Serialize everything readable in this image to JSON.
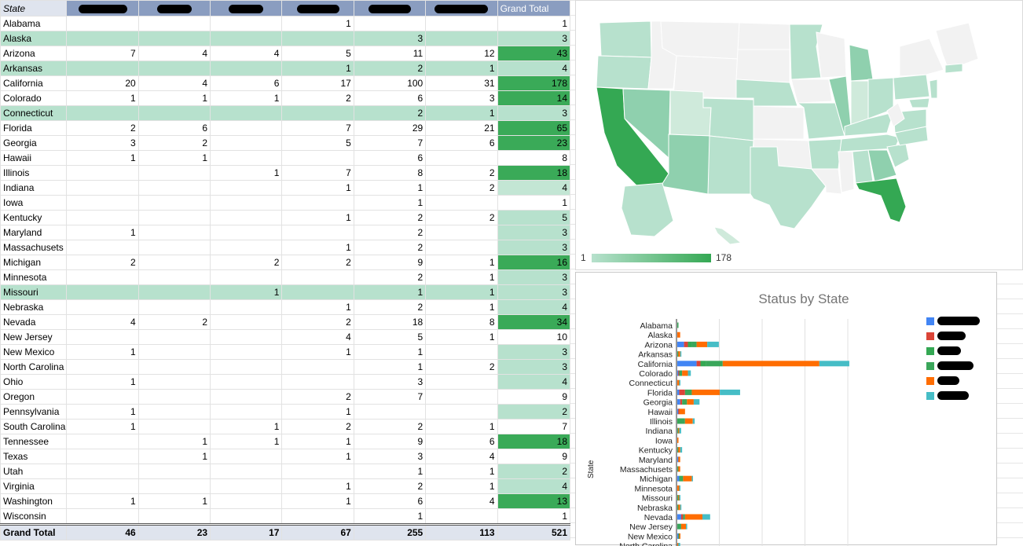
{
  "sheet": {
    "header_state": "State",
    "header_grand_total": "Grand Total",
    "redacted_header_widths": [
      62,
      44,
      44,
      54,
      54,
      68
    ],
    "rows": [
      {
        "state": "Alabama",
        "v": [
          "",
          "",
          "",
          "1",
          "",
          ""
        ],
        "total": "1",
        "band": false,
        "shade": 0
      },
      {
        "state": "Alaska",
        "v": [
          "",
          "",
          "",
          "",
          "3",
          ""
        ],
        "total": "3",
        "band": true,
        "shade": 1
      },
      {
        "state": "Arizona",
        "v": [
          "7",
          "4",
          "4",
          "5",
          "11",
          "12"
        ],
        "total": "43",
        "band": false,
        "shade": 3
      },
      {
        "state": "Arkansas",
        "v": [
          "",
          "",
          "",
          "1",
          "2",
          "1"
        ],
        "total": "4",
        "band": true,
        "shade": 1
      },
      {
        "state": "California",
        "v": [
          "20",
          "4",
          "6",
          "17",
          "100",
          "31"
        ],
        "total": "178",
        "band": false,
        "shade": 3
      },
      {
        "state": "Colorado",
        "v": [
          "1",
          "1",
          "1",
          "2",
          "6",
          "3"
        ],
        "total": "14",
        "band": false,
        "shade": 3
      },
      {
        "state": "Connecticut",
        "v": [
          "",
          "",
          "",
          "",
          "2",
          "1"
        ],
        "total": "3",
        "band": true,
        "shade": 1
      },
      {
        "state": "Florida",
        "v": [
          "2",
          "6",
          "",
          "7",
          "29",
          "21"
        ],
        "total": "65",
        "band": false,
        "shade": 3
      },
      {
        "state": "Georgia",
        "v": [
          "3",
          "2",
          "",
          "5",
          "7",
          "6"
        ],
        "total": "23",
        "band": false,
        "shade": 3
      },
      {
        "state": "Hawaii",
        "v": [
          "1",
          "1",
          "",
          "",
          "6",
          ""
        ],
        "total": "8",
        "band": false,
        "shade": 0
      },
      {
        "state": "Illinois",
        "v": [
          "",
          "",
          "1",
          "7",
          "8",
          "2"
        ],
        "total": "18",
        "band": false,
        "shade": 3
      },
      {
        "state": "Indiana",
        "v": [
          "",
          "",
          "",
          "1",
          "1",
          "2"
        ],
        "total": "4",
        "band": false,
        "shade": 2
      },
      {
        "state": "Iowa",
        "v": [
          "",
          "",
          "",
          "",
          "1",
          ""
        ],
        "total": "1",
        "band": false,
        "shade": 0
      },
      {
        "state": "Kentucky",
        "v": [
          "",
          "",
          "",
          "1",
          "2",
          "2"
        ],
        "total": "5",
        "band": false,
        "shade": 1
      },
      {
        "state": "Maryland",
        "v": [
          "1",
          "",
          "",
          "",
          "2",
          ""
        ],
        "total": "3",
        "band": false,
        "shade": 1
      },
      {
        "state": "Massachusets",
        "v": [
          "",
          "",
          "",
          "1",
          "2",
          ""
        ],
        "total": "3",
        "band": false,
        "shade": 1
      },
      {
        "state": "Michigan",
        "v": [
          "2",
          "",
          "2",
          "2",
          "9",
          "1"
        ],
        "total": "16",
        "band": false,
        "shade": 3
      },
      {
        "state": "Minnesota",
        "v": [
          "",
          "",
          "",
          "",
          "2",
          "1"
        ],
        "total": "3",
        "band": false,
        "shade": 1
      },
      {
        "state": "Missouri",
        "v": [
          "",
          "",
          "1",
          "",
          "1",
          "1"
        ],
        "total": "3",
        "band": true,
        "shade": 1
      },
      {
        "state": "Nebraska",
        "v": [
          "",
          "",
          "",
          "1",
          "2",
          "1"
        ],
        "total": "4",
        "band": false,
        "shade": 1
      },
      {
        "state": "Nevada",
        "v": [
          "4",
          "2",
          "",
          "2",
          "18",
          "8"
        ],
        "total": "34",
        "band": false,
        "shade": 3
      },
      {
        "state": "New Jersey",
        "v": [
          "",
          "",
          "",
          "4",
          "5",
          "1"
        ],
        "total": "10",
        "band": false,
        "shade": 0
      },
      {
        "state": "New Mexico",
        "v": [
          "1",
          "",
          "",
          "1",
          "1",
          ""
        ],
        "total": "3",
        "band": false,
        "shade": 1
      },
      {
        "state": "North Carolina",
        "v": [
          "",
          "",
          "",
          "",
          "1",
          "2"
        ],
        "total": "3",
        "band": false,
        "shade": 1
      },
      {
        "state": "Ohio",
        "v": [
          "1",
          "",
          "",
          "",
          "3",
          ""
        ],
        "total": "4",
        "band": false,
        "shade": 1
      },
      {
        "state": "Oregon",
        "v": [
          "",
          "",
          "",
          "2",
          "7",
          ""
        ],
        "total": "9",
        "band": false,
        "shade": 0
      },
      {
        "state": "Pennsylvania",
        "v": [
          "1",
          "",
          "",
          "1",
          "",
          ""
        ],
        "total": "2",
        "band": false,
        "shade": 1
      },
      {
        "state": "South Carolina",
        "v": [
          "1",
          "",
          "1",
          "2",
          "2",
          "1"
        ],
        "total": "7",
        "band": false,
        "shade": 0
      },
      {
        "state": "Tennessee",
        "v": [
          "",
          "1",
          "1",
          "1",
          "9",
          "6"
        ],
        "total": "18",
        "band": false,
        "shade": 3
      },
      {
        "state": "Texas",
        "v": [
          "",
          "1",
          "",
          "1",
          "3",
          "4"
        ],
        "total": "9",
        "band": false,
        "shade": 0
      },
      {
        "state": "Utah",
        "v": [
          "",
          "",
          "",
          "",
          "1",
          "1"
        ],
        "total": "2",
        "band": false,
        "shade": 1
      },
      {
        "state": "Virginia",
        "v": [
          "",
          "",
          "",
          "1",
          "2",
          "1"
        ],
        "total": "4",
        "band": false,
        "shade": 1
      },
      {
        "state": "Washington",
        "v": [
          "1",
          "1",
          "",
          "1",
          "6",
          "4"
        ],
        "total": "13",
        "band": false,
        "shade": 3
      },
      {
        "state": "Wisconsin",
        "v": [
          "",
          "",
          "",
          "",
          "1",
          ""
        ],
        "total": "1",
        "band": false,
        "shade": 0
      }
    ],
    "grand_total": {
      "label": "Grand Total",
      "v": [
        "46",
        "23",
        "17",
        "67",
        "255",
        "113"
      ],
      "total": "521"
    },
    "shade_colors": [
      "#ffffff",
      "#b7e1cd",
      "#c3e6d4",
      "#3aaa58"
    ]
  },
  "map": {
    "legend_min": "1",
    "legend_max": "178"
  },
  "chart_data": {
    "type": "bar",
    "orientation": "horizontal",
    "stacked": true,
    "title": "Status by State",
    "ylabel": "State",
    "xlabel": "",
    "categories": [
      "Alabama",
      "Alaska",
      "Arizona",
      "Arkansas",
      "California",
      "Colorado",
      "Connecticut",
      "Florida",
      "Georgia",
      "Hawaii",
      "Illinois",
      "Indiana",
      "Iowa",
      "Kentucky",
      "Maryland",
      "Massachusets",
      "Michigan",
      "Minnesota",
      "Missouri",
      "Nebraska",
      "Nevada",
      "New Jersey",
      "New Mexico",
      "North Carolina"
    ],
    "series": [
      {
        "color": "#4285f4",
        "values": [
          0,
          0,
          7,
          0,
          20,
          1,
          0,
          2,
          3,
          1,
          0,
          0,
          0,
          0,
          1,
          0,
          2,
          0,
          0,
          0,
          4,
          0,
          1,
          0
        ]
      },
      {
        "color": "#db4437",
        "values": [
          0,
          0,
          4,
          0,
          4,
          1,
          0,
          6,
          2,
          1,
          0,
          0,
          0,
          0,
          0,
          0,
          0,
          0,
          0,
          0,
          2,
          0,
          0,
          0
        ]
      },
      {
        "color": "#34a853",
        "values": [
          0,
          0,
          4,
          0,
          6,
          1,
          0,
          0,
          0,
          0,
          1,
          0,
          0,
          0,
          0,
          0,
          2,
          0,
          1,
          0,
          0,
          0,
          0,
          0
        ]
      },
      {
        "color": "#3aa65a",
        "values": [
          1,
          0,
          5,
          1,
          17,
          2,
          0,
          7,
          5,
          0,
          7,
          1,
          0,
          1,
          0,
          1,
          2,
          0,
          0,
          1,
          2,
          4,
          1,
          0
        ]
      },
      {
        "color": "#ff6d01",
        "values": [
          0,
          3,
          11,
          2,
          100,
          6,
          2,
          29,
          7,
          6,
          8,
          1,
          1,
          2,
          2,
          2,
          9,
          2,
          1,
          2,
          18,
          5,
          1,
          1
        ]
      },
      {
        "color": "#46bdc6",
        "values": [
          0,
          0,
          12,
          1,
          31,
          3,
          1,
          21,
          6,
          0,
          2,
          2,
          0,
          2,
          0,
          0,
          1,
          1,
          1,
          1,
          8,
          1,
          0,
          2
        ]
      }
    ],
    "legend_placement": "right",
    "grid": true,
    "xlim": [
      0,
      200
    ]
  }
}
